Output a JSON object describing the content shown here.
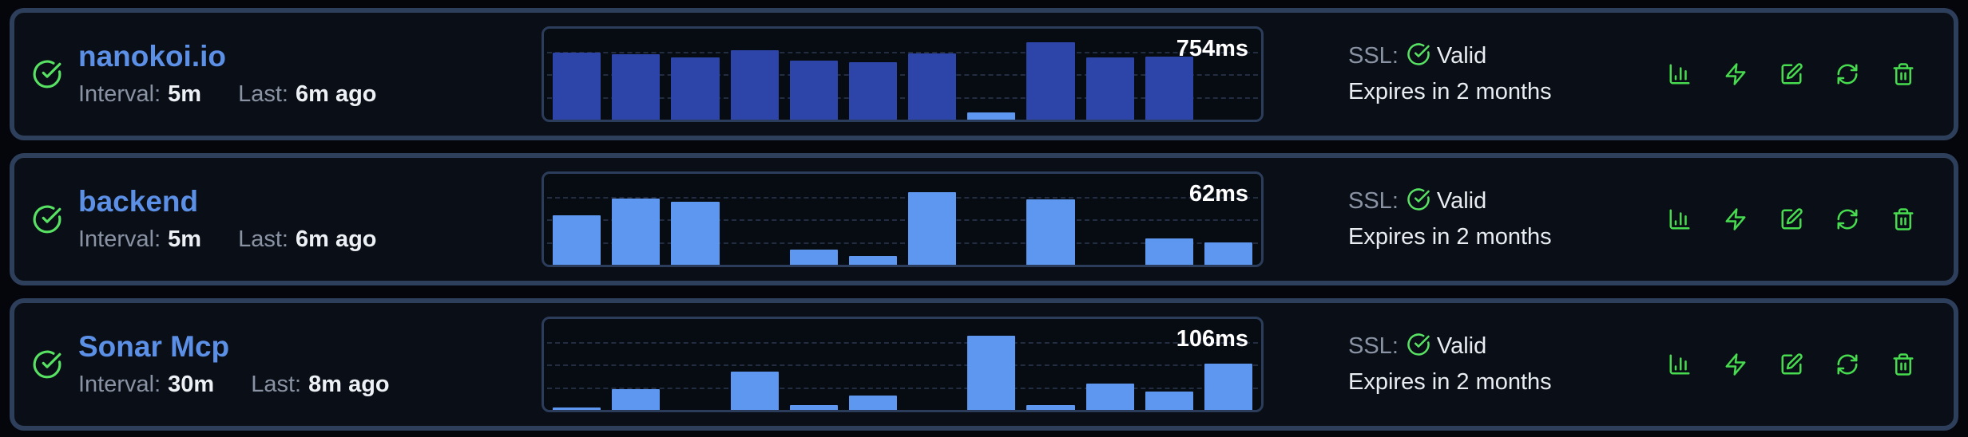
{
  "labels": {
    "interval": "Interval:",
    "last": "Last:",
    "ssl": "SSL:"
  },
  "colors": {
    "page_bg": "#04060c",
    "card_bg": "#0a0e16",
    "card_border": "#2e3f5c",
    "chart_border": "#2b3d5a",
    "bar_dark": "#2d44a8",
    "bar_light": "#5d97f0",
    "name_blue": "#5c90e6",
    "green": "#58e263",
    "action_green": "#47dc4f",
    "label_gray": "#8a93a4",
    "text_white": "#edf0f4"
  },
  "icons": {
    "status": "check-circle-icon",
    "ssl_valid": "check-circle-icon",
    "actions": [
      "bar-chart-icon",
      "lightning-icon",
      "edit-icon",
      "refresh-icon",
      "trash-icon"
    ]
  },
  "monitors": [
    {
      "name": "nanokoi.io",
      "interval": "5m",
      "last": "6m ago",
      "latest_ms": "754ms",
      "ssl_status": "Valid",
      "ssl_expiry": "Expires in 2 months",
      "chart": {
        "type": "bar",
        "unit": "ms",
        "bars": [
          {
            "pct": 74,
            "tone": "dark"
          },
          {
            "pct": 72,
            "tone": "dark"
          },
          {
            "pct": 68,
            "tone": "dark"
          },
          {
            "pct": 76,
            "tone": "dark"
          },
          {
            "pct": 65,
            "tone": "dark"
          },
          {
            "pct": 63,
            "tone": "dark"
          },
          {
            "pct": 73,
            "tone": "dark"
          },
          {
            "pct": 8,
            "tone": "light"
          },
          {
            "pct": 85,
            "tone": "dark"
          },
          {
            "pct": 68,
            "tone": "dark"
          },
          {
            "pct": 69,
            "tone": "dark"
          },
          {
            "pct": 0,
            "tone": "light"
          }
        ]
      }
    },
    {
      "name": "backend",
      "interval": "5m",
      "last": "6m ago",
      "latest_ms": "62ms",
      "ssl_status": "Valid",
      "ssl_expiry": "Expires in 2 months",
      "chart": {
        "type": "bar",
        "unit": "ms",
        "bars": [
          {
            "pct": 54,
            "tone": "light"
          },
          {
            "pct": 73,
            "tone": "light"
          },
          {
            "pct": 69,
            "tone": "light"
          },
          {
            "pct": 0,
            "tone": "light"
          },
          {
            "pct": 17,
            "tone": "light"
          },
          {
            "pct": 10,
            "tone": "light"
          },
          {
            "pct": 80,
            "tone": "light"
          },
          {
            "pct": 0,
            "tone": "light"
          },
          {
            "pct": 72,
            "tone": "light"
          },
          {
            "pct": 0,
            "tone": "light"
          },
          {
            "pct": 29,
            "tone": "light"
          },
          {
            "pct": 25,
            "tone": "light"
          }
        ]
      }
    },
    {
      "name": "Sonar Mcp",
      "interval": "30m",
      "last": "8m ago",
      "latest_ms": "106ms",
      "ssl_status": "Valid",
      "ssl_expiry": "Expires in 2 months",
      "chart": {
        "type": "bar",
        "unit": "ms",
        "bars": [
          {
            "pct": 3,
            "tone": "light"
          },
          {
            "pct": 23,
            "tone": "light"
          },
          {
            "pct": 0,
            "tone": "light"
          },
          {
            "pct": 42,
            "tone": "light"
          },
          {
            "pct": 5,
            "tone": "light"
          },
          {
            "pct": 16,
            "tone": "light"
          },
          {
            "pct": 0,
            "tone": "light"
          },
          {
            "pct": 82,
            "tone": "light"
          },
          {
            "pct": 5,
            "tone": "light"
          },
          {
            "pct": 29,
            "tone": "light"
          },
          {
            "pct": 20,
            "tone": "light"
          },
          {
            "pct": 51,
            "tone": "light"
          }
        ]
      }
    }
  ]
}
